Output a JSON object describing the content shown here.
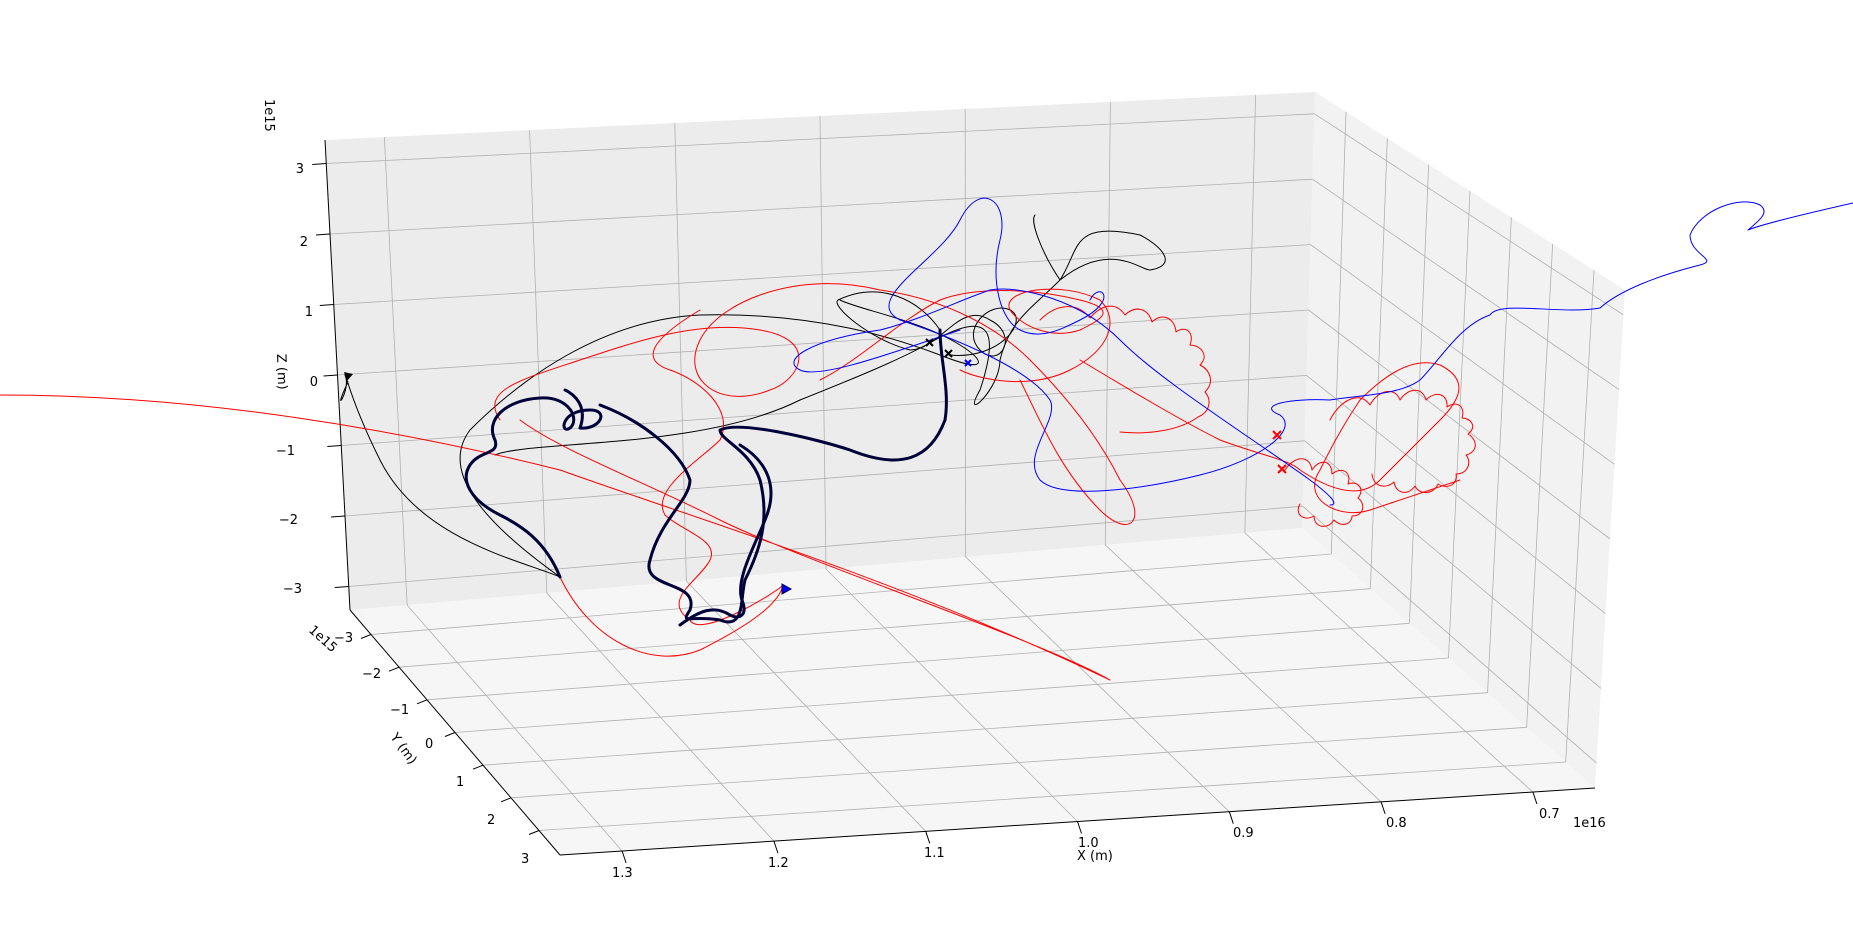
{
  "chart_data": {
    "type": "line",
    "projection": "3d",
    "xlabel": "X (m)",
    "ylabel": "Y (m)",
    "zlabel": "Z (m)",
    "x_offset": "1e16",
    "y_offset": "1e15",
    "z_offset": "1e15",
    "x_ticks": [
      "1.3",
      "1.2",
      "1.1",
      "1.0",
      "0.9",
      "0.8",
      "0.7"
    ],
    "y_ticks": [
      "−3",
      "−2",
      "−1",
      "0",
      "1",
      "2",
      "3"
    ],
    "z_ticks": [
      "−3",
      "−2",
      "−1",
      "0",
      "1",
      "2",
      "3"
    ],
    "xlim": [
      0.65,
      1.35
    ],
    "ylim": [
      -3.3,
      3.3
    ],
    "zlim": [
      -3.3,
      3.3
    ],
    "grid": true,
    "legend": "none",
    "colors": {
      "black": "#000000",
      "red": "#ff0000",
      "blue": "#0000ff",
      "navy": "#00003a",
      "pane_back": "#ececec",
      "pane_side": "#f2f2f2",
      "pane_floor": "#f6f6f6",
      "grid": "#b0b0b0"
    },
    "series": [
      {
        "color": "black",
        "marker_end": "triangle",
        "marker_start": "x"
      },
      {
        "color": "red",
        "marker_end": "triangle",
        "marker_start": "x"
      },
      {
        "color": "blue",
        "marker_end": "triangle",
        "marker_start": "x"
      },
      {
        "color": "navy",
        "marker_end": "triangle"
      }
    ]
  }
}
